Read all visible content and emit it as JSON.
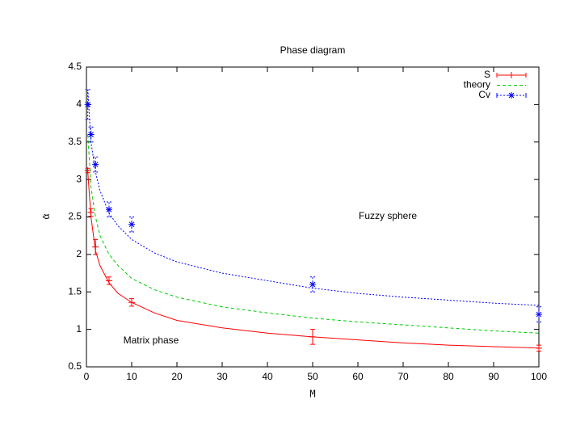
{
  "chart_data": {
    "type": "line",
    "title": "Phase diagram",
    "x_label": "M",
    "y_label": "ᾱ",
    "xlim": [
      0,
      100
    ],
    "ylim": [
      0.5,
      4.5
    ],
    "xticks": [
      0,
      10,
      20,
      30,
      40,
      50,
      60,
      70,
      80,
      90,
      100
    ],
    "yticks": [
      0.5,
      1,
      1.5,
      2,
      2.5,
      3,
      3.5,
      4,
      4.5
    ],
    "legend": "top-right",
    "annotations": [
      "Fuzzy sphere",
      "Matrix phase"
    ],
    "series": [
      {
        "name": "S",
        "color": "#ff0000",
        "style": "errorbars",
        "marker": "plus",
        "x": [
          0.3,
          1,
          2,
          5,
          10,
          50,
          100
        ],
        "values": [
          3.12,
          2.56,
          2.1,
          1.65,
          1.36,
          0.9,
          0.75
        ],
        "errors": [
          0.03,
          0.05,
          0.1,
          0.05,
          0.05,
          0.1,
          0.04
        ]
      },
      {
        "color": "#ff0000",
        "style": "solid",
        "x": [
          0.3,
          1,
          2,
          3,
          5,
          7,
          10,
          15,
          20,
          30,
          40,
          50,
          60,
          70,
          80,
          90,
          100
        ],
        "values": [
          3.1,
          2.5,
          2.05,
          1.85,
          1.62,
          1.48,
          1.36,
          1.22,
          1.12,
          1.02,
          0.95,
          0.9,
          0.86,
          0.82,
          0.79,
          0.77,
          0.75
        ]
      },
      {
        "name": "theory",
        "color": "#00cc00",
        "style": "dashed",
        "x": [
          0.3,
          1,
          2,
          3,
          5,
          7,
          10,
          15,
          20,
          30,
          40,
          50,
          60,
          70,
          80,
          90,
          100
        ],
        "values": [
          3.6,
          2.9,
          2.5,
          2.25,
          2.0,
          1.85,
          1.68,
          1.53,
          1.43,
          1.3,
          1.22,
          1.15,
          1.1,
          1.06,
          1.02,
          0.98,
          0.95
        ]
      },
      {
        "name": "Cv",
        "color": "#0000ff",
        "style": "errorbars",
        "marker": "star",
        "x": [
          0.3,
          1,
          2,
          5,
          10,
          50,
          100
        ],
        "values": [
          4.0,
          3.6,
          3.2,
          2.6,
          2.4,
          1.6,
          1.2
        ],
        "errors": [
          0.2,
          0.1,
          0.1,
          0.1,
          0.1,
          0.1,
          0.1
        ]
      },
      {
        "color": "#0000ff",
        "style": "dotted",
        "x": [
          0.3,
          1,
          2,
          3,
          5,
          7,
          10,
          15,
          20,
          30,
          40,
          50,
          60,
          70,
          80,
          90,
          100
        ],
        "values": [
          4.2,
          3.5,
          3.1,
          2.85,
          2.55,
          2.38,
          2.2,
          2.02,
          1.9,
          1.75,
          1.65,
          1.55,
          1.48,
          1.43,
          1.39,
          1.35,
          1.32
        ]
      }
    ]
  }
}
